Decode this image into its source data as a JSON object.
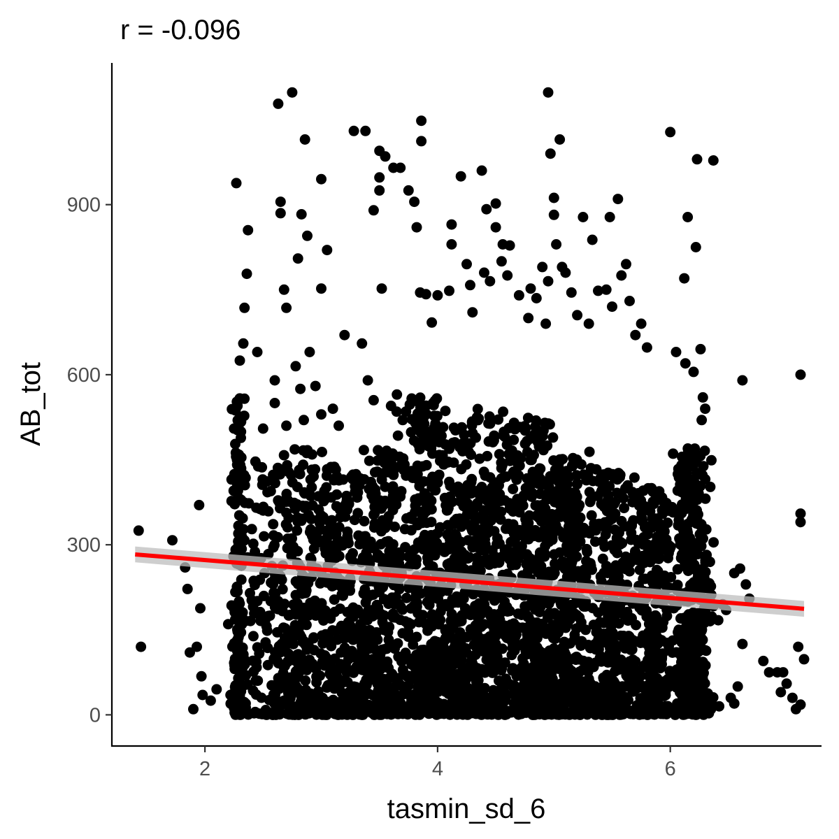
{
  "chart_data": {
    "type": "scatter",
    "title": "r = -0.096",
    "xlabel": "tasmin_sd_6",
    "ylabel": "AB_tot",
    "xlim": [
      1.2,
      7.3
    ],
    "ylim": [
      -55,
      1150
    ],
    "x_ticks": [
      2,
      4,
      6
    ],
    "y_ticks": [
      0,
      300,
      600,
      900
    ],
    "x_tick_labels": [
      "2",
      "4",
      "6"
    ],
    "y_tick_labels": [
      "0",
      "300",
      "600",
      "900"
    ],
    "grid": false,
    "legend": "none",
    "point_color": "#000000",
    "trend": {
      "method": "linear",
      "x": [
        1.4,
        7.15
      ],
      "y": [
        283,
        187
      ],
      "ci_halfwidth": 14,
      "color": "#ff0000",
      "ci_color": "#bebebe"
    },
    "points": [
      [
        1.43,
        325
      ],
      [
        1.45,
        120
      ],
      [
        1.72,
        308
      ],
      [
        1.83,
        260
      ],
      [
        1.85,
        222
      ],
      [
        1.87,
        110
      ],
      [
        1.9,
        10
      ],
      [
        1.93,
        120
      ],
      [
        1.95,
        370
      ],
      [
        1.96,
        188
      ],
      [
        1.97,
        68
      ],
      [
        1.98,
        35
      ],
      [
        2.05,
        25
      ],
      [
        2.1,
        45
      ],
      [
        2.2,
        160
      ],
      [
        2.22,
        35
      ],
      [
        2.25,
        12
      ],
      [
        2.3,
        15
      ],
      [
        2.35,
        20
      ],
      [
        2.27,
        938
      ],
      [
        2.37,
        855
      ],
      [
        2.36,
        778
      ],
      [
        2.34,
        718
      ],
      [
        2.33,
        655
      ],
      [
        2.3,
        625
      ],
      [
        2.65,
        905
      ],
      [
        2.65,
        885
      ],
      [
        2.68,
        750
      ],
      [
        2.7,
        718
      ],
      [
        2.75,
        1098
      ],
      [
        2.63,
        1078
      ],
      [
        2.8,
        805
      ],
      [
        2.83,
        883
      ],
      [
        2.86,
        1015
      ],
      [
        2.88,
        845
      ],
      [
        3.0,
        945
      ],
      [
        3.05,
        820
      ],
      [
        3.0,
        752
      ],
      [
        3.28,
        1030
      ],
      [
        3.38,
        1030
      ],
      [
        3.5,
        995
      ],
      [
        3.5,
        948
      ],
      [
        3.5,
        925
      ],
      [
        3.55,
        985
      ],
      [
        3.62,
        965
      ],
      [
        3.68,
        965
      ],
      [
        3.45,
        890
      ],
      [
        3.52,
        752
      ],
      [
        3.75,
        925
      ],
      [
        3.8,
        905
      ],
      [
        3.82,
        860
      ],
      [
        3.86,
        1048
      ],
      [
        3.86,
        1012
      ],
      [
        3.85,
        745
      ],
      [
        4.12,
        865
      ],
      [
        4.12,
        830
      ],
      [
        4.2,
        950
      ],
      [
        4.38,
        960
      ],
      [
        4.42,
        892
      ],
      [
        4.5,
        902
      ],
      [
        4.5,
        860
      ],
      [
        4.56,
        830
      ],
      [
        4.62,
        828
      ],
      [
        4.95,
        1098
      ],
      [
        4.97,
        990
      ],
      [
        5.0,
        912
      ],
      [
        5.0,
        882
      ],
      [
        5.02,
        830
      ],
      [
        5.05,
        1015
      ],
      [
        5.07,
        790
      ],
      [
        5.25,
        878
      ],
      [
        5.33,
        838
      ],
      [
        5.48,
        878
      ],
      [
        5.55,
        910
      ],
      [
        5.62,
        795
      ],
      [
        6.0,
        1028
      ],
      [
        6.23,
        980
      ],
      [
        6.37,
        978
      ],
      [
        6.15,
        878
      ],
      [
        6.22,
        825
      ],
      [
        6.12,
        770
      ],
      [
        6.62,
        590
      ],
      [
        7.12,
        600
      ],
      [
        7.12,
        355
      ],
      [
        7.12,
        340
      ],
      [
        6.8,
        95
      ],
      [
        6.85,
        75
      ],
      [
        6.92,
        75
      ],
      [
        6.97,
        75
      ],
      [
        6.95,
        40
      ],
      [
        7.0,
        55
      ],
      [
        7.05,
        30
      ],
      [
        7.08,
        10
      ],
      [
        7.1,
        120
      ],
      [
        7.15,
        98
      ],
      [
        7.12,
        18
      ],
      [
        6.55,
        250
      ],
      [
        6.6,
        258
      ],
      [
        6.65,
        230
      ],
      [
        6.68,
        205
      ],
      [
        6.62,
        125
      ],
      [
        6.58,
        50
      ],
      [
        6.52,
        30
      ],
      [
        6.55,
        20
      ],
      [
        6.45,
        195
      ],
      [
        6.48,
        185
      ],
      [
        6.42,
        15
      ],
      [
        6.35,
        10
      ],
      [
        3.9,
        742
      ],
      [
        4.0,
        740
      ],
      [
        3.95,
        692
      ],
      [
        4.1,
        748
      ],
      [
        4.25,
        795
      ],
      [
        4.28,
        758
      ],
      [
        4.3,
        710
      ],
      [
        4.4,
        780
      ],
      [
        4.45,
        765
      ],
      [
        4.55,
        800
      ],
      [
        4.6,
        775
      ],
      [
        4.7,
        740
      ],
      [
        4.78,
        700
      ],
      [
        4.8,
        752
      ],
      [
        4.85,
        735
      ],
      [
        4.9,
        790
      ],
      [
        4.95,
        765
      ],
      [
        4.93,
        690
      ],
      [
        5.1,
        780
      ],
      [
        5.15,
        745
      ],
      [
        5.2,
        705
      ],
      [
        5.3,
        690
      ],
      [
        5.38,
        748
      ],
      [
        5.45,
        750
      ],
      [
        5.5,
        720
      ],
      [
        5.58,
        775
      ],
      [
        5.65,
        730
      ],
      [
        5.7,
        670
      ],
      [
        5.75,
        690
      ],
      [
        5.8,
        648
      ],
      [
        6.05,
        640
      ],
      [
        6.13,
        620
      ],
      [
        6.2,
        605
      ],
      [
        6.26,
        645
      ],
      [
        6.28,
        560
      ],
      [
        6.3,
        540
      ],
      [
        6.27,
        520
      ],
      [
        3.2,
        670
      ],
      [
        3.35,
        655
      ],
      [
        3.4,
        590
      ],
      [
        3.45,
        555
      ],
      [
        3.6,
        545
      ],
      [
        3.65,
        565
      ],
      [
        3.7,
        520
      ],
      [
        2.9,
        640
      ],
      [
        2.95,
        580
      ],
      [
        3.0,
        530
      ],
      [
        3.1,
        540
      ],
      [
        3.15,
        510
      ],
      [
        2.45,
        640
      ],
      [
        2.5,
        505
      ],
      [
        2.6,
        590
      ],
      [
        2.6,
        550
      ],
      [
        2.7,
        510
      ],
      [
        2.78,
        615
      ],
      [
        2.82,
        575
      ],
      [
        2.85,
        520
      ]
    ],
    "dense_clusters": [
      {
        "cx": 2.29,
        "sx": 0.03,
        "ymax": 560,
        "n": 150
      },
      {
        "cx": 2.55,
        "sx": 0.12,
        "ymax": 470,
        "n": 160
      },
      {
        "cx": 2.85,
        "sx": 0.12,
        "ymax": 470,
        "n": 260
      },
      {
        "cx": 3.2,
        "sx": 0.12,
        "ymax": 440,
        "n": 260
      },
      {
        "cx": 3.55,
        "sx": 0.1,
        "ymax": 470,
        "n": 300
      },
      {
        "cx": 3.9,
        "sx": 0.1,
        "ymax": 560,
        "n": 380
      },
      {
        "cx": 4.2,
        "sx": 0.1,
        "ymax": 520,
        "n": 320
      },
      {
        "cx": 4.5,
        "sx": 0.12,
        "ymax": 540,
        "n": 330
      },
      {
        "cx": 4.85,
        "sx": 0.1,
        "ymax": 520,
        "n": 400
      },
      {
        "cx": 5.15,
        "sx": 0.1,
        "ymax": 470,
        "n": 360
      },
      {
        "cx": 5.5,
        "sx": 0.1,
        "ymax": 430,
        "n": 300
      },
      {
        "cx": 5.85,
        "sx": 0.1,
        "ymax": 400,
        "n": 320
      },
      {
        "cx": 6.2,
        "sx": 0.08,
        "ymax": 470,
        "n": 380
      }
    ]
  }
}
